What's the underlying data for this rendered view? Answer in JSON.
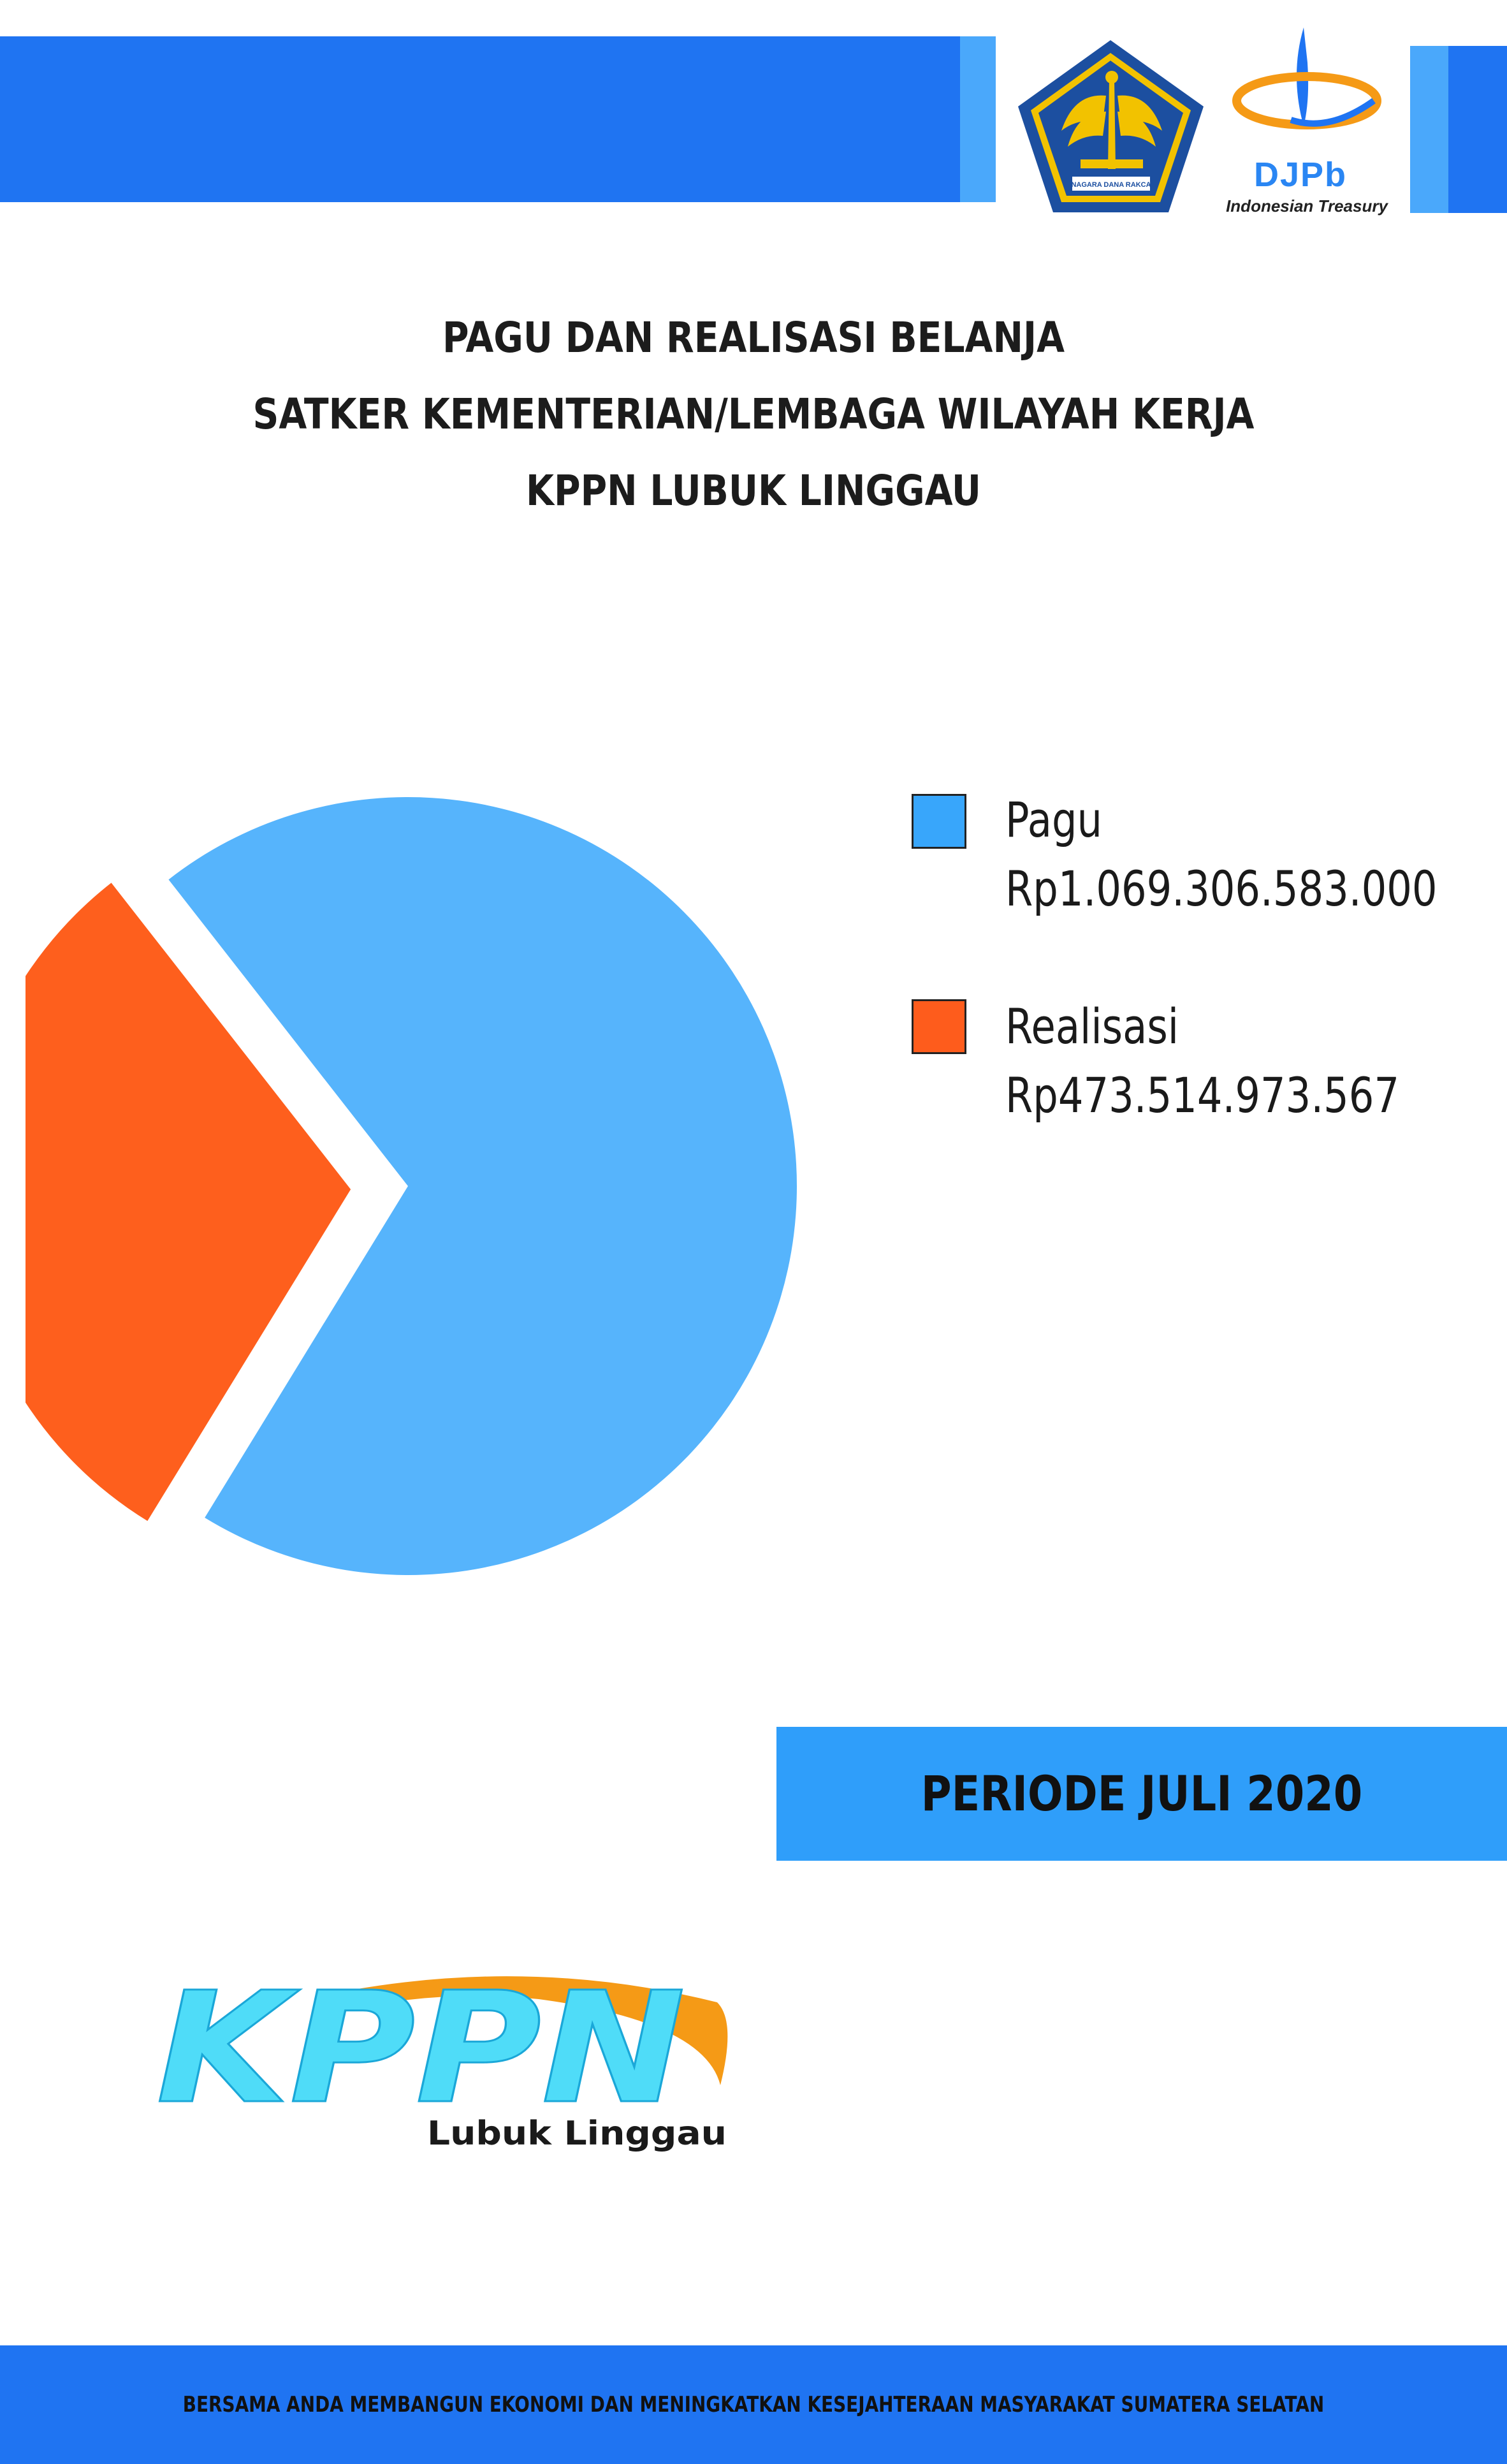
{
  "header": {
    "djpb_name": "DJPb",
    "djpb_subtitle": "Indonesian Treasury",
    "kemenkeu_motto": "NAGARA DANA RAKCA"
  },
  "title_lines": [
    "PAGU DAN REALISASI BELANJA",
    "SATKER KEMENTERIAN/LEMBAGA WILAYAH KERJA",
    "KPPN LUBUK LINGGAU"
  ],
  "chart_data": {
    "type": "pie",
    "title": "PAGU DAN REALISASI BELANJA SATKER KEMENTERIAN/LEMBAGA WILAYAH KERJA KPPN LUBUK LINGGAU",
    "legend_position": "right",
    "categories": [
      "Pagu",
      "Realisasi"
    ],
    "values": [
      1069306583000,
      473514973567
    ],
    "value_labels": [
      "Rp1.069.306.583.000",
      "Rp473.514.973.567"
    ],
    "colors": [
      "#56b4fc",
      "#fe5f1d"
    ],
    "legend_colors": [
      "#38a6fb",
      "#fe5c1c"
    ],
    "exploded_slice": "Realisasi"
  },
  "period": "PERIODE JULI 2020",
  "kppn_logo": {
    "main": "KPPN",
    "sub": "Lubuk Linggau"
  },
  "footer": "BERSAMA ANDA MEMBANGUN EKONOMI DAN MENINGKATKAN KESEJAHTERAAN MASYARAKAT SUMATERA SELATAN"
}
